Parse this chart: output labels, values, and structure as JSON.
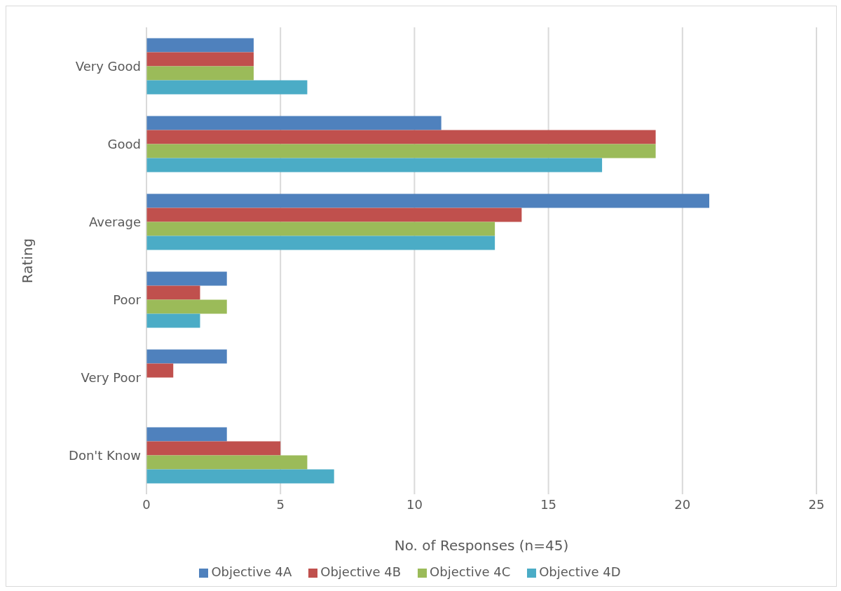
{
  "chart_data": {
    "type": "bar",
    "orientation": "horizontal",
    "xlabel": "No. of Responses (n=45)",
    "ylabel": "Rating",
    "categories": [
      "Very Good",
      "Good",
      "Average",
      "Poor",
      "Very Poor",
      "Don't Know"
    ],
    "series": [
      {
        "name": "Objective 4A",
        "color": "#4f81bd",
        "values": [
          4,
          11,
          21,
          3,
          3,
          3
        ]
      },
      {
        "name": "Objective 4B",
        "color": "#c0504d",
        "values": [
          4,
          19,
          14,
          2,
          1,
          5
        ]
      },
      {
        "name": "Objective 4C",
        "color": "#9bbb59",
        "values": [
          4,
          19,
          13,
          3,
          0,
          6
        ]
      },
      {
        "name": "Objective 4D",
        "color": "#4bacc6",
        "values": [
          6,
          17,
          13,
          2,
          0,
          7
        ]
      }
    ],
    "xlim": [
      0,
      25
    ],
    "xticks": [
      0,
      5,
      10,
      15,
      20,
      25
    ],
    "grid": "x",
    "legend": "bottom"
  }
}
